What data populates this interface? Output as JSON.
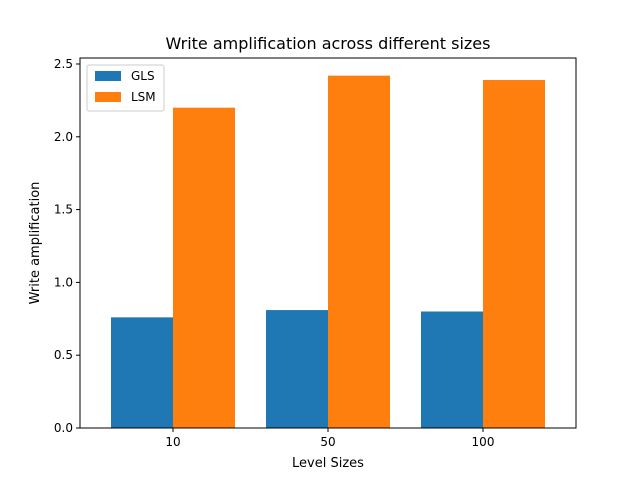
{
  "chart_data": {
    "type": "bar",
    "title": "Write amplification across different sizes",
    "xlabel": "Level Sizes",
    "ylabel": "Write amplification",
    "categories": [
      "10",
      "50",
      "100"
    ],
    "series": [
      {
        "name": "GLS",
        "color": "#1f77b4",
        "values": [
          0.76,
          0.81,
          0.8
        ]
      },
      {
        "name": "LSM",
        "color": "#ff7f0e",
        "values": [
          2.2,
          2.42,
          2.39
        ]
      }
    ],
    "ylim": [
      0,
      2.5
    ],
    "yticks": [
      "0.0",
      "0.5",
      "1.0",
      "1.5",
      "2.0",
      "2.5"
    ],
    "grid": false,
    "legend_position": "top-left"
  }
}
